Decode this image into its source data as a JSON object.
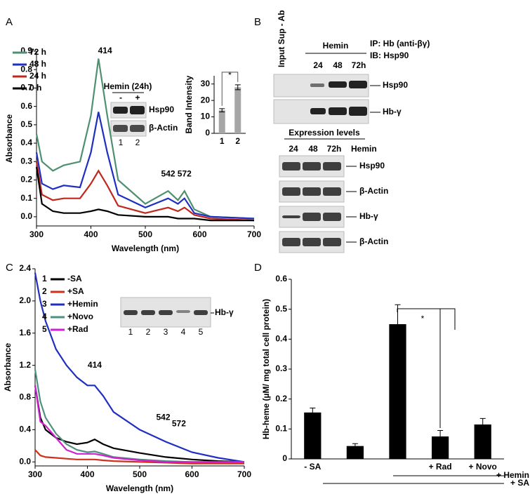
{
  "panel_labels": [
    "A",
    "B",
    "C",
    "D"
  ],
  "panel_a_blot": {
    "title": "Hemin (24h)",
    "lanes_top": [
      "-",
      "+"
    ],
    "bands": [
      "Hsp90",
      "β-Actin"
    ],
    "lanes": [
      "1",
      "2"
    ]
  },
  "panel_b": {
    "side_label": "Input Sup - Ab",
    "treatment": "Hemin",
    "times": [
      "24",
      "48",
      "72h"
    ],
    "ip": "IP: Hb (anti-βγ)",
    "ib": "IB: Hsp90",
    "ip_bands": [
      "Hsp90",
      "Hb-γ"
    ],
    "expression_title": "Expression levels",
    "expression_times": [
      "24",
      "48",
      "72h"
    ],
    "expression_treatment": "Hemin",
    "expression_bands": [
      "Hsp90",
      "β-Actin",
      "Hb-γ",
      "β-Actin"
    ]
  },
  "panel_c_blot": {
    "band": "Hb-γ",
    "lanes": [
      "1",
      "2",
      "3",
      "4",
      "5"
    ]
  },
  "chart_data": [
    {
      "type": "line",
      "xlabel": "Wavelength (nm)",
      "ylabel": "Absorbance",
      "x": [
        300,
        310,
        330,
        350,
        380,
        400,
        414,
        430,
        450,
        500,
        542,
        560,
        572,
        590,
        620,
        700
      ],
      "series": [
        {
          "name": "72 h",
          "color": "#4f9070",
          "values": [
            0.45,
            0.3,
            0.25,
            0.28,
            0.3,
            0.55,
            0.86,
            0.55,
            0.2,
            0.07,
            0.14,
            0.09,
            0.14,
            0.04,
            0.0,
            -0.01
          ]
        },
        {
          "name": "48 h",
          "color": "#1f2fc0",
          "values": [
            0.35,
            0.18,
            0.15,
            0.17,
            0.16,
            0.35,
            0.57,
            0.35,
            0.12,
            0.05,
            0.1,
            0.07,
            0.1,
            0.02,
            0.0,
            -0.01
          ]
        },
        {
          "name": "24 h",
          "color": "#c0281e",
          "values": [
            0.3,
            0.12,
            0.09,
            0.1,
            0.1,
            0.18,
            0.25,
            0.17,
            0.06,
            0.02,
            0.05,
            0.03,
            0.05,
            0.01,
            -0.01,
            -0.02
          ]
        },
        {
          "name": "0 h",
          "color": "#000000",
          "values": [
            0.27,
            0.07,
            0.03,
            0.02,
            0.02,
            0.03,
            0.04,
            0.03,
            0.01,
            0.0,
            0.0,
            -0.01,
            -0.01,
            -0.01,
            -0.02,
            -0.02
          ]
        }
      ],
      "annotations": [
        "414",
        "542",
        "572"
      ],
      "xlim": [
        300,
        700
      ],
      "xticks": [
        300,
        400,
        500,
        600,
        700
      ],
      "ylim": [
        -0.05,
        0.9
      ],
      "yticks": [
        {
          "value": 0,
          "label": "0.0"
        },
        0.1,
        0.2,
        0.3,
        0.4,
        0.5,
        0.6,
        0.7,
        0.8,
        0.9
      ]
    },
    {
      "type": "bar",
      "ylabel": "Band Intensity",
      "categories": [
        "1",
        "2"
      ],
      "values": [
        14,
        28
      ],
      "errors": [
        1,
        1.5
      ],
      "color": "#a6a6a6",
      "annotation": "*",
      "ylim": [
        0,
        35
      ],
      "yticks": [
        0,
        10,
        20,
        30
      ]
    },
    {
      "type": "line",
      "xlabel": "Wavelength (nm)",
      "ylabel": "Absorbance",
      "x": [
        300,
        310,
        320,
        340,
        360,
        380,
        400,
        414,
        430,
        450,
        500,
        550,
        600,
        650,
        700
      ],
      "series": [
        {
          "name": "-SA",
          "number": "1",
          "color": "#000000",
          "values": [
            0.95,
            0.55,
            0.4,
            0.3,
            0.25,
            0.22,
            0.24,
            0.28,
            0.22,
            0.17,
            0.11,
            0.06,
            0.03,
            0.01,
            0.0
          ]
        },
        {
          "name": "+SA",
          "number": "2",
          "color": "#d0301a",
          "values": [
            0.15,
            0.08,
            0.06,
            0.05,
            0.04,
            0.03,
            0.03,
            0.03,
            0.02,
            0.01,
            0.0,
            -0.01,
            -0.02,
            -0.02,
            -0.02
          ]
        },
        {
          "name": "+Hemin",
          "number": "3",
          "color": "#1f2fc0",
          "values": [
            2.35,
            2.0,
            1.75,
            1.4,
            1.2,
            1.05,
            0.95,
            0.95,
            0.82,
            0.62,
            0.4,
            0.25,
            0.12,
            0.05,
            0.0
          ]
        },
        {
          "name": "+Novo",
          "number": "4",
          "color": "#4f9080",
          "values": [
            1.15,
            0.75,
            0.55,
            0.35,
            0.22,
            0.15,
            0.12,
            0.13,
            0.1,
            0.06,
            0.03,
            0.01,
            0.0,
            0.0,
            0.0
          ]
        },
        {
          "name": "+Rad",
          "number": "5",
          "color": "#d020d0",
          "values": [
            0.95,
            0.5,
            0.45,
            0.3,
            0.15,
            0.1,
            0.1,
            0.1,
            0.08,
            0.05,
            0.02,
            0.0,
            0.0,
            0.0,
            0.0
          ]
        }
      ],
      "annotations": [
        "414",
        "542",
        "572"
      ],
      "xlim": [
        300,
        700
      ],
      "xticks": [
        300,
        400,
        500,
        600,
        700
      ],
      "ylim": [
        -0.05,
        2.4
      ],
      "yticks": [
        {
          "value": 0,
          "label": "0.0"
        },
        0.4,
        0.8,
        1.2,
        1.6,
        {
          "value": 2,
          "label": "2.0"
        },
        2.4
      ]
    },
    {
      "type": "bar",
      "ylabel": "Hb-heme (µM/ mg total cell protein)",
      "categories": [
        "- SA",
        null,
        null,
        "+ Rad",
        "+ Novo"
      ],
      "values": [
        0.155,
        0.043,
        0.45,
        0.075,
        0.115
      ],
      "errors": [
        0.015,
        0.008,
        0.065,
        0.02,
        0.02
      ],
      "color": "#000000",
      "annotation": "*",
      "treatments": [
        "+ Hemin",
        "+ SA"
      ],
      "ylim": [
        0,
        0.6
      ],
      "yticks": [
        0,
        0.1,
        0.2,
        0.3,
        0.4,
        0.5,
        0.6
      ]
    }
  ]
}
